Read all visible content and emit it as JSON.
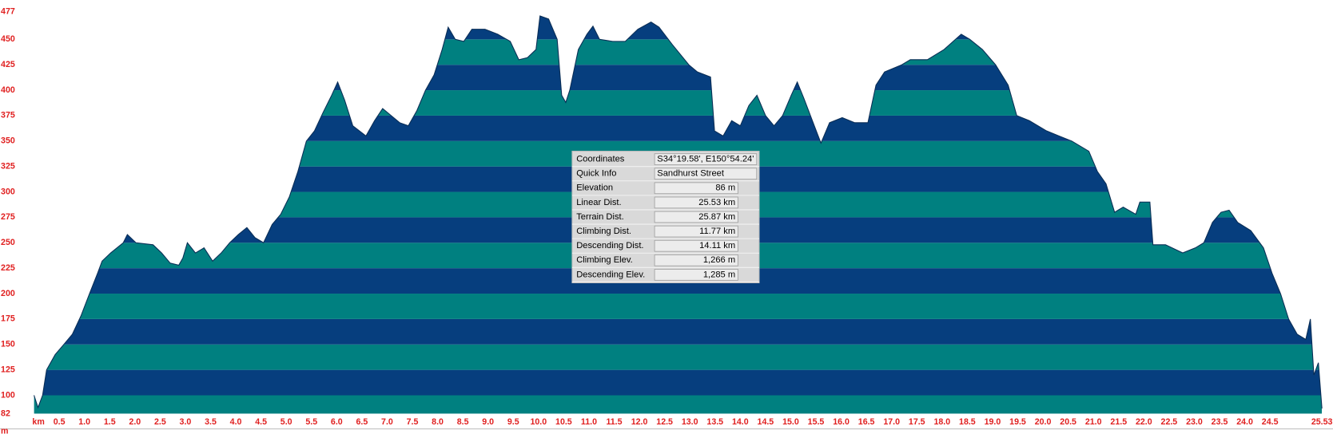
{
  "chart_data": {
    "type": "area",
    "x": [
      0,
      0.08,
      0.17,
      0.25,
      0.42,
      0.59,
      0.76,
      0.93,
      1.1,
      1.26,
      1.35,
      1.52,
      1.77,
      1.85,
      2.02,
      2.36,
      2.53,
      2.7,
      2.87,
      2.95,
      3.04,
      3.2,
      3.37,
      3.54,
      3.71,
      3.88,
      4.05,
      4.22,
      4.38,
      4.55,
      4.72,
      4.89,
      5.06,
      5.23,
      5.4,
      5.56,
      5.73,
      5.9,
      6.02,
      6.16,
      6.32,
      6.58,
      6.75,
      6.91,
      7.08,
      7.25,
      7.42,
      7.59,
      7.76,
      7.93,
      8.09,
      8.21,
      8.35,
      8.52,
      8.68,
      8.94,
      9.19,
      9.44,
      9.61,
      9.78,
      9.95,
      10.03,
      10.2,
      10.37,
      10.46,
      10.54,
      10.62,
      10.79,
      10.96,
      11.08,
      11.21,
      11.47,
      11.72,
      11.97,
      12.23,
      12.39,
      12.65,
      12.98,
      13.15,
      13.41,
      13.49,
      13.66,
      13.83,
      14.0,
      14.17,
      14.33,
      14.5,
      14.67,
      14.84,
      15.01,
      15.13,
      15.26,
      15.43,
      15.6,
      15.77,
      16.02,
      16.27,
      16.53,
      16.69,
      16.86,
      17.2,
      17.37,
      17.71,
      18.04,
      18.38,
      18.55,
      18.8,
      19.06,
      19.31,
      19.48,
      19.73,
      20.07,
      20.32,
      20.57,
      20.91,
      21.08,
      21.25,
      21.42,
      21.59,
      21.84,
      21.92,
      22.12,
      22.18,
      22.43,
      22.77,
      23.02,
      23.19,
      23.36,
      23.53,
      23.69,
      23.86,
      24.12,
      24.37,
      24.54,
      24.71,
      24.87,
      25.04,
      25.21,
      25.3,
      25.37,
      25.46,
      25.53
    ],
    "values": [
      100,
      88,
      100,
      125,
      140,
      150,
      160,
      178,
      200,
      220,
      232,
      240,
      250,
      258,
      250,
      248,
      240,
      230,
      228,
      235,
      250,
      240,
      245,
      232,
      240,
      250,
      258,
      265,
      255,
      250,
      268,
      278,
      295,
      320,
      350,
      360,
      378,
      395,
      408,
      390,
      365,
      355,
      370,
      382,
      375,
      368,
      365,
      380,
      400,
      415,
      440,
      462,
      450,
      448,
      460,
      460,
      455,
      448,
      430,
      432,
      440,
      473,
      470,
      450,
      395,
      388,
      400,
      440,
      455,
      463,
      450,
      448,
      448,
      460,
      467,
      462,
      445,
      425,
      418,
      413,
      360,
      355,
      370,
      365,
      385,
      395,
      375,
      365,
      375,
      395,
      408,
      392,
      370,
      348,
      368,
      373,
      368,
      368,
      405,
      418,
      425,
      430,
      430,
      440,
      455,
      450,
      440,
      425,
      405,
      375,
      370,
      360,
      355,
      350,
      340,
      320,
      308,
      280,
      285,
      278,
      290,
      290,
      248,
      248,
      240,
      245,
      250,
      270,
      280,
      282,
      270,
      262,
      245,
      220,
      200,
      175,
      160,
      155,
      175,
      120,
      132,
      87
    ],
    "xlim": [
      0,
      25.53
    ],
    "ylim": [
      82,
      477
    ],
    "xlabel": "km",
    "ylabel": "m",
    "yticks": [
      82,
      100,
      125,
      150,
      175,
      200,
      225,
      250,
      275,
      300,
      325,
      350,
      375,
      400,
      425,
      450,
      477
    ],
    "xticks": [
      {
        "value": 0.5,
        "label": "0.5"
      },
      {
        "value": 1,
        "label": "1.0"
      },
      {
        "value": 1.5,
        "label": "1.5"
      },
      {
        "value": 2,
        "label": "2.0"
      },
      {
        "value": 2.5,
        "label": "2.5"
      },
      {
        "value": 3,
        "label": "3.0"
      },
      {
        "value": 3.5,
        "label": "3.5"
      },
      {
        "value": 4,
        "label": "4.0"
      },
      {
        "value": 4.5,
        "label": "4.5"
      },
      {
        "value": 5,
        "label": "5.0"
      },
      {
        "value": 5.5,
        "label": "5.5"
      },
      {
        "value": 6,
        "label": "6.0"
      },
      {
        "value": 6.5,
        "label": "6.5"
      },
      {
        "value": 7,
        "label": "7.0"
      },
      {
        "value": 7.5,
        "label": "7.5"
      },
      {
        "value": 8,
        "label": "8.0"
      },
      {
        "value": 8.5,
        "label": "8.5"
      },
      {
        "value": 9,
        "label": "9.0"
      },
      {
        "value": 9.5,
        "label": "9.5"
      },
      {
        "value": 10,
        "label": "10.0"
      },
      {
        "value": 10.5,
        "label": "10.5"
      },
      {
        "value": 11,
        "label": "11.0"
      },
      {
        "value": 11.5,
        "label": "11.5"
      },
      {
        "value": 12,
        "label": "12.0"
      },
      {
        "value": 12.5,
        "label": "12.5"
      },
      {
        "value": 13,
        "label": "13.0"
      },
      {
        "value": 13.5,
        "label": "13.5"
      },
      {
        "value": 14,
        "label": "14.0"
      },
      {
        "value": 14.5,
        "label": "14.5"
      },
      {
        "value": 15,
        "label": "15.0"
      },
      {
        "value": 15.5,
        "label": "15.5"
      },
      {
        "value": 16,
        "label": "16.0"
      },
      {
        "value": 16.5,
        "label": "16.5"
      },
      {
        "value": 17,
        "label": "17.0"
      },
      {
        "value": 17.5,
        "label": "17.5"
      },
      {
        "value": 18,
        "label": "18.0"
      },
      {
        "value": 18.5,
        "label": "18.5"
      },
      {
        "value": 19,
        "label": "19.0"
      },
      {
        "value": 19.5,
        "label": "19.5"
      },
      {
        "value": 20,
        "label": "20.0"
      },
      {
        "value": 20.5,
        "label": "20.5"
      },
      {
        "value": 21,
        "label": "21.0"
      },
      {
        "value": 21.5,
        "label": "21.5"
      },
      {
        "value": 22,
        "label": "22.0"
      },
      {
        "value": 22.5,
        "label": "22.5"
      },
      {
        "value": 23,
        "label": "23.0"
      },
      {
        "value": 23.5,
        "label": "23.5"
      },
      {
        "value": 24,
        "label": "24.0"
      },
      {
        "value": 24.5,
        "label": "24.5"
      },
      25.53
    ],
    "band_colors": [
      "#008080",
      "#063e7e"
    ]
  },
  "info_panel": {
    "rows": [
      {
        "label": "Coordinates",
        "value": "S34°19.58', E150°54.24'"
      },
      {
        "label": "Quick Info",
        "value": "Sandhurst Street"
      },
      {
        "label": "Elevation",
        "value": "86 m"
      },
      {
        "label": "Linear Dist.",
        "value": "25.53 km"
      },
      {
        "label": "Terrain Dist.",
        "value": "25.87 km"
      },
      {
        "label": "Climbing Dist.",
        "value": "11.77 km"
      },
      {
        "label": "Descending Dist.",
        "value": "14.11 km"
      },
      {
        "label": "Climbing Elev.",
        "value": "1,266 m"
      },
      {
        "label": "Descending Elev.",
        "value": "1,285 m"
      }
    ]
  }
}
